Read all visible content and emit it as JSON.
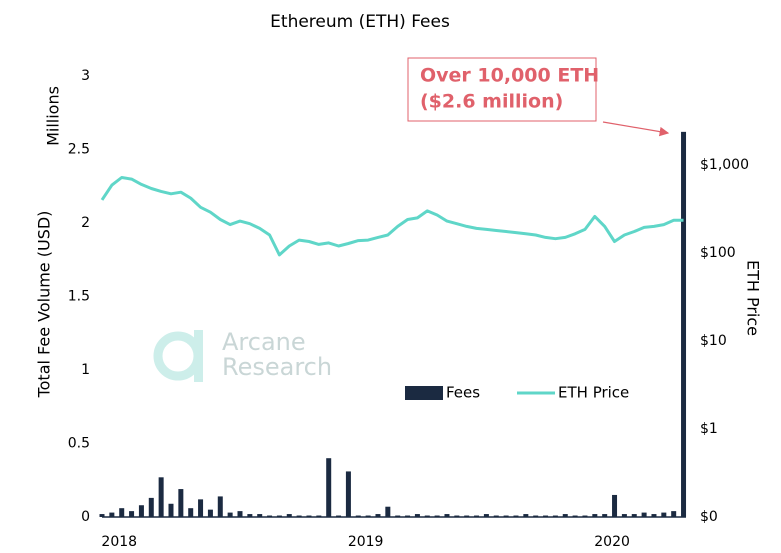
{
  "chart_data": {
    "type": "bar-line",
    "title": "Ethereum (ETH) Fees",
    "ylabel": "Total Fee Volume (USD)",
    "yunit": "Millions",
    "y2label": "ETH Price",
    "annotation": [
      "Over 10,000 ETH",
      "($2.6 million)"
    ],
    "watermark": [
      "Arcane",
      "Research"
    ],
    "x": [
      2017.93,
      2017.97,
      2018.01,
      2018.05,
      2018.09,
      2018.13,
      2018.17,
      2018.21,
      2018.25,
      2018.29,
      2018.33,
      2018.37,
      2018.41,
      2018.45,
      2018.49,
      2018.53,
      2018.57,
      2018.61,
      2018.65,
      2018.69,
      2018.73,
      2018.77,
      2018.81,
      2018.85,
      2018.89,
      2018.93,
      2018.97,
      2019.01,
      2019.05,
      2019.09,
      2019.13,
      2019.17,
      2019.21,
      2019.25,
      2019.29,
      2019.33,
      2019.37,
      2019.41,
      2019.45,
      2019.49,
      2019.53,
      2019.57,
      2019.61,
      2019.65,
      2019.69,
      2019.73,
      2019.77,
      2019.81,
      2019.85,
      2019.89,
      2019.93,
      2019.97,
      2020.01,
      2020.05,
      2020.09,
      2020.13,
      2020.17,
      2020.21,
      2020.25,
      2020.29
    ],
    "xlim": [
      2017.93,
      2020.3
    ],
    "xticks": [
      2018,
      2019,
      2020
    ],
    "ylim": [
      0,
      3
    ],
    "yticks": [
      0,
      0.5,
      1,
      1.5,
      2,
      2.5,
      3
    ],
    "y2scale": "log",
    "y2lim": [
      0.1,
      10233
    ],
    "y2ticks": [
      {
        "value": 0.1,
        "label": "$0"
      },
      {
        "value": 1,
        "label": "$1"
      },
      {
        "value": 10,
        "label": "$10"
      },
      {
        "value": 100,
        "label": "$100"
      },
      {
        "value": 1000,
        "label": "$1,000"
      }
    ],
    "series": [
      {
        "name": "Fees",
        "type": "bar",
        "color": "#1b2a41",
        "values": [
          0.02,
          0.03,
          0.06,
          0.04,
          0.08,
          0.13,
          0.27,
          0.09,
          0.19,
          0.06,
          0.12,
          0.05,
          0.14,
          0.03,
          0.04,
          0.02,
          0.02,
          0.01,
          0.01,
          0.02,
          0.01,
          0.01,
          0.01,
          0.4,
          0.01,
          0.31,
          0.01,
          0.01,
          0.02,
          0.07,
          0.01,
          0.01,
          0.02,
          0.01,
          0.01,
          0.02,
          0.01,
          0.01,
          0.01,
          0.02,
          0.01,
          0.01,
          0.01,
          0.02,
          0.01,
          0.01,
          0.01,
          0.02,
          0.01,
          0.01,
          0.02,
          0.02,
          0.15,
          0.02,
          0.02,
          0.03,
          0.02,
          0.03,
          0.04,
          2.62
        ]
      },
      {
        "name": "ETH Price",
        "type": "line",
        "axis": "y2",
        "color": "#5fd6c8",
        "values": [
          400,
          590,
          720,
          690,
          600,
          540,
          500,
          470,
          490,
          420,
          330,
          290,
          240,
          210,
          230,
          215,
          190,
          160,
          95,
          120,
          140,
          135,
          125,
          130,
          120,
          128,
          138,
          140,
          150,
          160,
          200,
          240,
          250,
          300,
          270,
          230,
          215,
          200,
          190,
          185,
          180,
          175,
          170,
          165,
          160,
          150,
          145,
          150,
          165,
          185,
          260,
          200,
          135,
          160,
          175,
          195,
          200,
          210,
          235,
          235
        ]
      }
    ]
  }
}
